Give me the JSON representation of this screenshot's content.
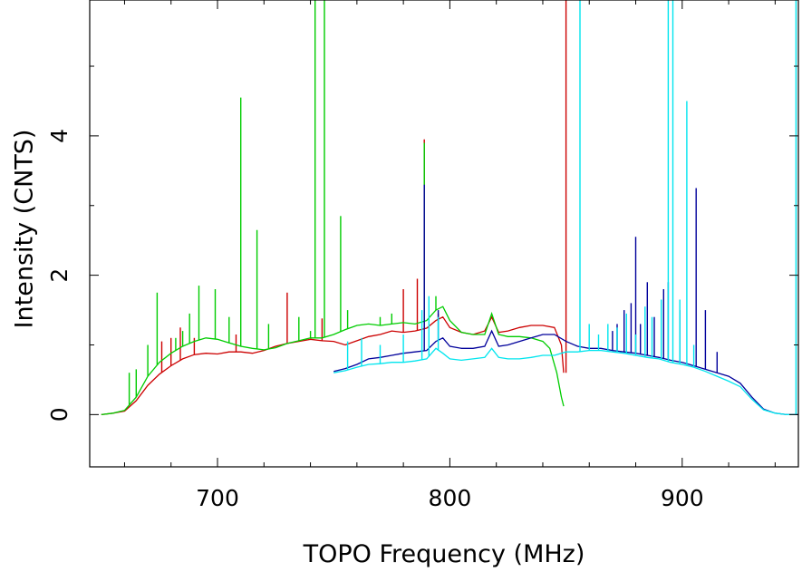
{
  "chart_data": {
    "type": "line",
    "title": "",
    "xlabel": "TOPO Frequency (MHz)",
    "ylabel": "Intensity (CNTS)",
    "xlim": [
      645,
      950
    ],
    "ylim": [
      -0.75,
      5.95
    ],
    "x_ticks": [
      700,
      800,
      900
    ],
    "y_ticks": [
      0,
      2,
      4
    ],
    "grid": false,
    "legend": "none",
    "series": [
      {
        "color": "#cc0000",
        "points": [
          [
            650,
            0.0
          ],
          [
            655,
            0.02
          ],
          [
            660,
            0.05
          ],
          [
            665,
            0.2
          ],
          [
            670,
            0.42
          ],
          [
            675,
            0.58
          ],
          [
            680,
            0.7
          ],
          [
            685,
            0.8
          ],
          [
            690,
            0.86
          ],
          [
            695,
            0.88
          ],
          [
            700,
            0.87
          ],
          [
            705,
            0.9
          ],
          [
            710,
            0.9
          ],
          [
            715,
            0.88
          ],
          [
            720,
            0.92
          ],
          [
            725,
            0.98
          ],
          [
            730,
            1.02
          ],
          [
            735,
            1.05
          ],
          [
            740,
            1.08
          ],
          [
            745,
            1.06
          ],
          [
            750,
            1.05
          ],
          [
            755,
            1.0
          ],
          [
            760,
            1.06
          ],
          [
            765,
            1.12
          ],
          [
            770,
            1.15
          ],
          [
            775,
            1.2
          ],
          [
            780,
            1.18
          ],
          [
            785,
            1.2
          ],
          [
            790,
            1.24
          ],
          [
            794,
            1.35
          ],
          [
            797,
            1.4
          ],
          [
            800,
            1.25
          ],
          [
            805,
            1.18
          ],
          [
            810,
            1.15
          ],
          [
            815,
            1.2
          ],
          [
            818,
            1.4
          ],
          [
            821,
            1.18
          ],
          [
            825,
            1.2
          ],
          [
            830,
            1.25
          ],
          [
            835,
            1.28
          ],
          [
            840,
            1.28
          ],
          [
            845,
            1.25
          ],
          [
            848,
            1.0
          ],
          [
            849,
            0.6
          ]
        ],
        "spikes": [
          [
            676,
            1.05
          ],
          [
            680,
            1.1
          ],
          [
            684,
            1.25
          ],
          [
            690,
            1.1
          ],
          [
            708,
            1.15
          ],
          [
            730,
            1.75
          ],
          [
            745,
            1.38
          ],
          [
            780,
            1.8
          ],
          [
            786,
            1.95
          ],
          [
            789,
            3.95
          ],
          [
            795,
            1.45
          ],
          [
            850,
            5.95
          ]
        ]
      },
      {
        "color": "#00cc00",
        "points": [
          [
            650,
            0.0
          ],
          [
            655,
            0.02
          ],
          [
            660,
            0.06
          ],
          [
            665,
            0.25
          ],
          [
            670,
            0.55
          ],
          [
            675,
            0.75
          ],
          [
            680,
            0.88
          ],
          [
            685,
            0.98
          ],
          [
            690,
            1.05
          ],
          [
            695,
            1.1
          ],
          [
            700,
            1.08
          ],
          [
            705,
            1.03
          ],
          [
            710,
            0.98
          ],
          [
            715,
            0.95
          ],
          [
            720,
            0.93
          ],
          [
            725,
            0.96
          ],
          [
            730,
            1.02
          ],
          [
            735,
            1.06
          ],
          [
            740,
            1.1
          ],
          [
            745,
            1.1
          ],
          [
            750,
            1.15
          ],
          [
            755,
            1.22
          ],
          [
            760,
            1.28
          ],
          [
            765,
            1.3
          ],
          [
            770,
            1.28
          ],
          [
            775,
            1.3
          ],
          [
            780,
            1.32
          ],
          [
            785,
            1.3
          ],
          [
            790,
            1.35
          ],
          [
            794,
            1.5
          ],
          [
            797,
            1.55
          ],
          [
            800,
            1.35
          ],
          [
            805,
            1.18
          ],
          [
            810,
            1.15
          ],
          [
            815,
            1.15
          ],
          [
            818,
            1.45
          ],
          [
            821,
            1.15
          ],
          [
            825,
            1.12
          ],
          [
            830,
            1.12
          ],
          [
            835,
            1.1
          ],
          [
            840,
            1.05
          ],
          [
            843,
            0.95
          ],
          [
            846,
            0.6
          ],
          [
            848,
            0.25
          ],
          [
            849,
            0.12
          ]
        ],
        "spikes": [
          [
            662,
            0.6
          ],
          [
            665,
            0.65
          ],
          [
            670,
            1.0
          ],
          [
            674,
            1.75
          ],
          [
            682,
            1.1
          ],
          [
            685,
            1.2
          ],
          [
            688,
            1.45
          ],
          [
            692,
            1.85
          ],
          [
            699,
            1.8
          ],
          [
            705,
            1.4
          ],
          [
            710,
            4.55
          ],
          [
            717,
            2.65
          ],
          [
            722,
            1.3
          ],
          [
            735,
            1.4
          ],
          [
            740,
            1.2
          ],
          [
            742,
            5.95
          ],
          [
            746,
            5.95
          ],
          [
            753,
            2.85
          ],
          [
            756,
            1.5
          ],
          [
            770,
            1.4
          ],
          [
            775,
            1.45
          ],
          [
            789,
            3.9
          ],
          [
            794,
            1.7
          ]
        ]
      },
      {
        "color": "#00009b",
        "points": [
          [
            750,
            0.62
          ],
          [
            755,
            0.66
          ],
          [
            760,
            0.72
          ],
          [
            765,
            0.8
          ],
          [
            770,
            0.82
          ],
          [
            775,
            0.85
          ],
          [
            780,
            0.88
          ],
          [
            785,
            0.9
          ],
          [
            790,
            0.92
          ],
          [
            794,
            1.05
          ],
          [
            797,
            1.1
          ],
          [
            800,
            0.98
          ],
          [
            805,
            0.95
          ],
          [
            810,
            0.95
          ],
          [
            815,
            0.98
          ],
          [
            818,
            1.2
          ],
          [
            821,
            0.98
          ],
          [
            825,
            1.0
          ],
          [
            830,
            1.05
          ],
          [
            835,
            1.1
          ],
          [
            840,
            1.15
          ],
          [
            845,
            1.15
          ],
          [
            850,
            1.05
          ],
          [
            855,
            0.98
          ],
          [
            860,
            0.95
          ],
          [
            865,
            0.95
          ],
          [
            870,
            0.92
          ],
          [
            875,
            0.9
          ],
          [
            880,
            0.88
          ],
          [
            885,
            0.85
          ],
          [
            890,
            0.82
          ],
          [
            895,
            0.78
          ],
          [
            900,
            0.75
          ],
          [
            905,
            0.7
          ],
          [
            910,
            0.65
          ],
          [
            915,
            0.6
          ],
          [
            920,
            0.55
          ],
          [
            925,
            0.45
          ],
          [
            930,
            0.25
          ],
          [
            935,
            0.08
          ],
          [
            940,
            0.02
          ],
          [
            945,
            0.0
          ],
          [
            950,
            0.0
          ]
        ],
        "spikes": [
          [
            789,
            3.3
          ],
          [
            795,
            1.5
          ],
          [
            870,
            1.2
          ],
          [
            872,
            1.3
          ],
          [
            875,
            1.5
          ],
          [
            878,
            1.6
          ],
          [
            880,
            2.55
          ],
          [
            882,
            1.3
          ],
          [
            885,
            1.9
          ],
          [
            888,
            1.4
          ],
          [
            892,
            1.8
          ],
          [
            894,
            1.9
          ],
          [
            899,
            1.5
          ],
          [
            906,
            3.25
          ],
          [
            910,
            1.5
          ],
          [
            915,
            0.9
          ]
        ]
      },
      {
        "color": "#00e5ee",
        "points": [
          [
            750,
            0.6
          ],
          [
            755,
            0.63
          ],
          [
            760,
            0.68
          ],
          [
            765,
            0.72
          ],
          [
            770,
            0.73
          ],
          [
            775,
            0.75
          ],
          [
            780,
            0.75
          ],
          [
            785,
            0.77
          ],
          [
            790,
            0.8
          ],
          [
            794,
            0.95
          ],
          [
            797,
            0.88
          ],
          [
            800,
            0.8
          ],
          [
            805,
            0.78
          ],
          [
            810,
            0.8
          ],
          [
            815,
            0.82
          ],
          [
            818,
            0.95
          ],
          [
            821,
            0.82
          ],
          [
            825,
            0.8
          ],
          [
            830,
            0.8
          ],
          [
            835,
            0.82
          ],
          [
            840,
            0.85
          ],
          [
            845,
            0.85
          ],
          [
            850,
            0.9
          ],
          [
            855,
            0.9
          ],
          [
            860,
            0.92
          ],
          [
            865,
            0.92
          ],
          [
            870,
            0.9
          ],
          [
            875,
            0.88
          ],
          [
            880,
            0.85
          ],
          [
            885,
            0.82
          ],
          [
            890,
            0.8
          ],
          [
            895,
            0.75
          ],
          [
            900,
            0.72
          ],
          [
            905,
            0.68
          ],
          [
            910,
            0.62
          ],
          [
            915,
            0.55
          ],
          [
            920,
            0.48
          ],
          [
            925,
            0.4
          ],
          [
            930,
            0.22
          ],
          [
            935,
            0.07
          ],
          [
            940,
            0.02
          ],
          [
            945,
            0.0
          ],
          [
            949,
            0.0
          ]
        ],
        "spikes": [
          [
            756,
            1.05
          ],
          [
            762,
            1.1
          ],
          [
            770,
            1.0
          ],
          [
            780,
            1.15
          ],
          [
            788,
            1.5
          ],
          [
            791,
            1.7
          ],
          [
            795,
            1.4
          ],
          [
            856,
            5.95
          ],
          [
            860,
            1.3
          ],
          [
            864,
            1.15
          ],
          [
            868,
            1.3
          ],
          [
            872,
            1.25
          ],
          [
            876,
            1.45
          ],
          [
            880,
            1.15
          ],
          [
            884,
            1.55
          ],
          [
            887,
            1.4
          ],
          [
            891,
            1.65
          ],
          [
            894,
            5.95
          ],
          [
            896,
            5.95
          ],
          [
            899,
            1.65
          ],
          [
            902,
            4.5
          ],
          [
            905,
            1.0
          ],
          [
            949,
            5.95
          ]
        ]
      }
    ]
  }
}
